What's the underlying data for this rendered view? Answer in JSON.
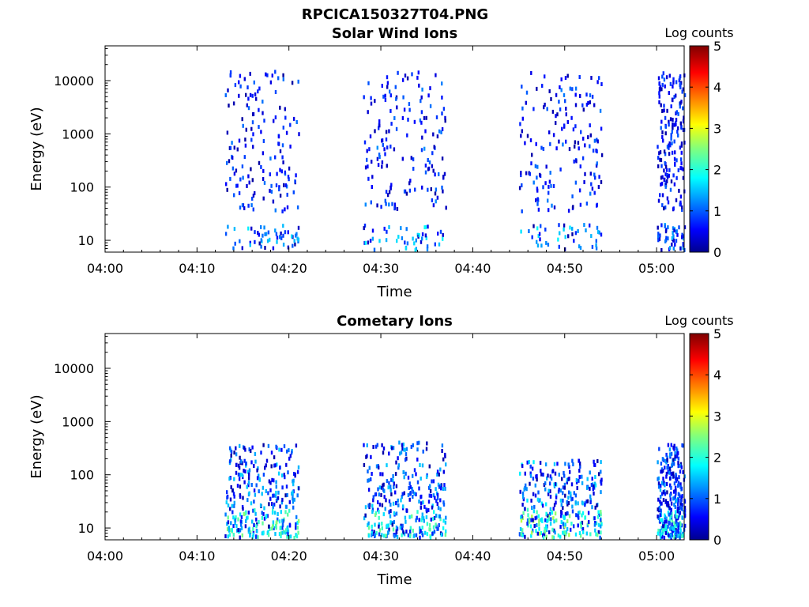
{
  "figure_title": "RPCICA150327T04.PNG",
  "colormap": "jet",
  "chart_data": [
    {
      "type": "heatmap",
      "title": "Solar Wind Ions",
      "xlabel": "Time",
      "ylabel": "Energy (eV)",
      "x_ticks": [
        "04:00",
        "04:10",
        "04:20",
        "04:30",
        "04:40",
        "04:50",
        "05:00"
      ],
      "y_ticks": [
        "10",
        "100",
        "1000",
        "10000"
      ],
      "y_scale": "log",
      "y_range_eV": [
        6,
        45000
      ],
      "x_range_minutes_after_04_00": [
        0,
        63
      ],
      "colorbar": {
        "label": "Log counts",
        "range": [
          0,
          5
        ],
        "ticks": [
          "0",
          "1",
          "2",
          "3",
          "4",
          "5"
        ]
      },
      "activity_bursts": [
        {
          "start": "04:13",
          "end": "04:21",
          "energy_eV": [
            6,
            16000
          ],
          "max_log_counts": 1.8
        },
        {
          "start": "04:28",
          "end": "04:37",
          "energy_eV": [
            6,
            16000
          ],
          "max_log_counts": 2.0
        },
        {
          "start": "04:45",
          "end": "04:54",
          "energy_eV": [
            6,
            17000
          ],
          "max_log_counts": 1.9
        },
        {
          "start": "05:00",
          "end": "05:03",
          "energy_eV": [
            6,
            15000
          ],
          "max_log_counts": 1.6
        }
      ]
    },
    {
      "type": "heatmap",
      "title": "Cometary Ions",
      "xlabel": "Time",
      "ylabel": "Energy (eV)",
      "x_ticks": [
        "04:00",
        "04:10",
        "04:20",
        "04:30",
        "04:40",
        "04:50",
        "05:00"
      ],
      "y_ticks": [
        "10",
        "100",
        "1000",
        "10000"
      ],
      "y_scale": "log",
      "y_range_eV": [
        6,
        45000
      ],
      "x_range_minutes_after_04_00": [
        0,
        63
      ],
      "colorbar": {
        "label": "Log counts",
        "range": [
          0,
          5
        ],
        "ticks": [
          "0",
          "1",
          "2",
          "3",
          "4",
          "5"
        ]
      },
      "activity_bursts": [
        {
          "start": "04:13",
          "end": "04:21",
          "energy_eV": [
            6,
            400
          ],
          "max_log_counts": 2.6
        },
        {
          "start": "04:28",
          "end": "04:37",
          "energy_eV": [
            6,
            450
          ],
          "max_log_counts": 2.5
        },
        {
          "start": "04:45",
          "end": "04:54",
          "energy_eV": [
            6,
            200
          ],
          "max_log_counts": 2.8
        },
        {
          "start": "05:00",
          "end": "05:03",
          "energy_eV": [
            6,
            400
          ],
          "max_log_counts": 2.3
        }
      ]
    }
  ]
}
